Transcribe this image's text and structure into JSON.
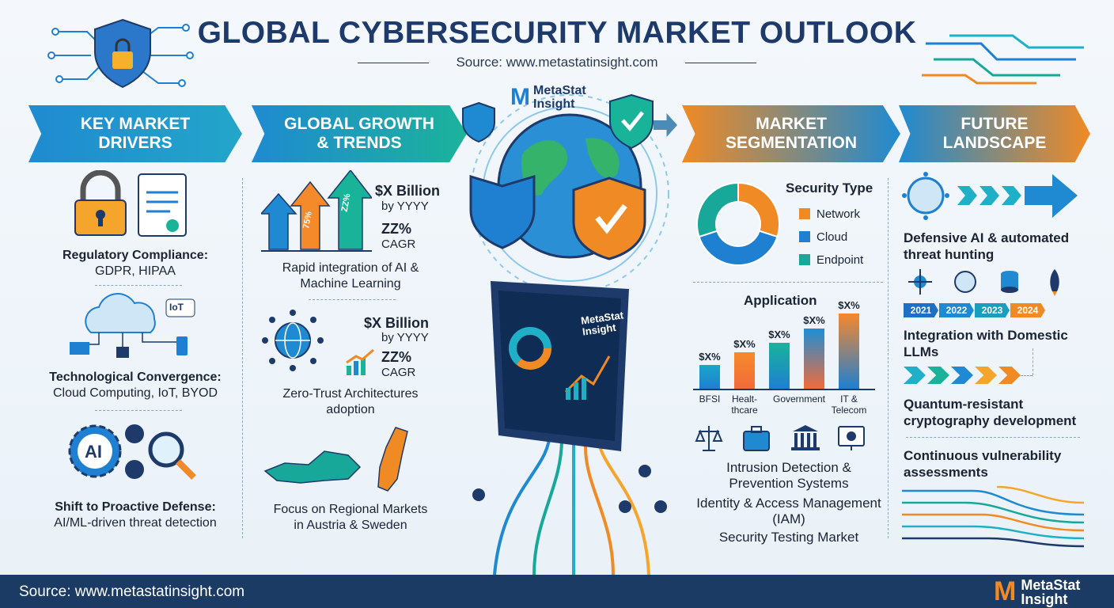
{
  "header": {
    "title": "GLOBAL CYBERSECURITY MARKET OUTLOOK",
    "source": "Source: www.metastatinsight.com"
  },
  "logo": {
    "name_line1": "MetaStat",
    "name_line2": "Insight"
  },
  "banners": [
    {
      "line1": "KEY MARKET",
      "line2": "DRIVERS"
    },
    {
      "line1": "GLOBAL GROWTH",
      "line2": "& TRENDS"
    },
    {
      "line1": "MARKET",
      "line2": "SEGMENTATION"
    },
    {
      "line1": "FUTURE",
      "line2": "LANDSCAPE"
    }
  ],
  "drivers": [
    {
      "title": "Regulatory Compliance:",
      "detail": "GDPR, HIPAA",
      "icon": "lock-and-document-icon"
    },
    {
      "title": "Technological Convergence:",
      "detail": "Cloud Computing, IoT, BYOD",
      "icon": "cloud-network-icon",
      "badge": "IoT"
    },
    {
      "title": "Shift to Proactive Defense:",
      "detail": "AI/ML-driven threat detection",
      "icon": "ai-gears-magnifier-icon",
      "badge": "AI"
    }
  ],
  "growth": [
    {
      "value": "$X Billion",
      "by": "by YYYY",
      "cagr": "ZZ%",
      "cagr_label": "CAGR",
      "caption": [
        "Rapid integration of AI &",
        "Machine Learning"
      ],
      "arrow_labels": [
        "75%",
        "ZZ%"
      ]
    },
    {
      "value": "$X Billion",
      "by": "by YYYY",
      "cagr": "ZZ%",
      "cagr_label": "CAGR",
      "caption": [
        "Zero-Trust Architectures",
        "adoption"
      ]
    },
    {
      "caption": [
        "Focus on Regional Markets",
        "in Austria & Sweden"
      ]
    }
  ],
  "segmentation": {
    "donut": {
      "title": "Security Type",
      "slices": [
        {
          "label": "Network",
          "color": "#f08a24",
          "share": 30
        },
        {
          "label": "Cloud",
          "color": "#1f7fd1",
          "share": 40
        },
        {
          "label": "Endpoint",
          "color": "#18a89a",
          "share": 30
        }
      ]
    },
    "application": {
      "title": "Application"
    },
    "systems": [
      "Intrusion Detection &",
      "Prevention Systems",
      "Identity & Access Management",
      "(IAM)",
      "Security Testing Market"
    ]
  },
  "chart_data": {
    "type": "bar",
    "title": "Application",
    "categories": [
      "BFSI",
      "Healt-\nthcare",
      "Government",
      "",
      "IT &\nTelecom"
    ],
    "data_labels": [
      "$X%",
      "$X%",
      "$X%",
      "$X%",
      "$X%"
    ],
    "values": [
      32,
      48,
      61,
      80,
      100
    ],
    "colors": [
      "#1aa6c9",
      "#f58a2a",
      "#19b39a",
      "#1d8fd6",
      "#f6882c"
    ]
  },
  "future": {
    "items": [
      "Defensive AI & automated",
      "threat hunting",
      "Integration with Domestic",
      "LLMs",
      "Quantum-resistant",
      "cryptography development",
      "Continuous vulnerability",
      "assessments"
    ],
    "years": [
      {
        "label": "2021",
        "color": "#1f6fc4"
      },
      {
        "label": "2022",
        "color": "#1f8ad1"
      },
      {
        "label": "2023",
        "color": "#1c9dbb"
      },
      {
        "label": "2024",
        "color": "#f08a24"
      }
    ]
  },
  "screen": {
    "brand_line1": "MetaStat",
    "brand_line2": "Insight"
  },
  "footer": {
    "source": "Source: www.metastatinsight.com",
    "logo_line1": "MetaStat",
    "logo_line2": "Insight"
  }
}
